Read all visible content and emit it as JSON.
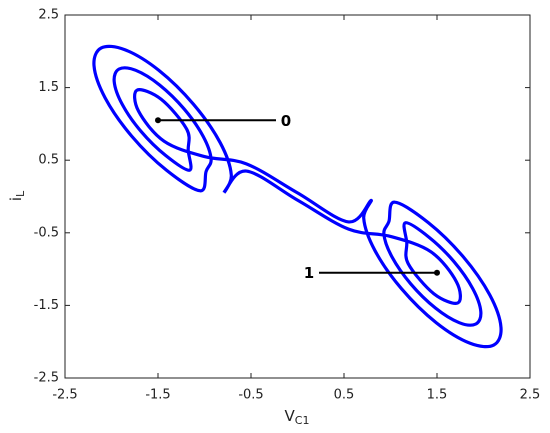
{
  "chart_data": {
    "type": "line",
    "xlabel": {
      "main": "V",
      "sub": "C1"
    },
    "ylabel": {
      "main": "i",
      "sub": "L"
    },
    "xlim": [
      -2.5,
      2.5
    ],
    "ylim": [
      -2.5,
      2.5
    ],
    "xticks": [
      -2.5,
      -1.5,
      -0.5,
      0.5,
      1.5,
      2.5
    ],
    "yticks": [
      -2.5,
      -1.5,
      -0.5,
      0.5,
      1.5,
      2.5
    ],
    "grid": false,
    "series": [
      {
        "color": "#0000ff",
        "x": [
          -0.79,
          -0.712,
          -0.832,
          -1.118,
          -1.492,
          -1.856,
          -2.11,
          -2.188,
          -2.068,
          -1.782,
          -1.408,
          -1.044,
          -0.983,
          -0.929,
          -1.015,
          -1.218,
          -1.483,
          -1.739,
          -1.918,
          -1.971,
          -1.885,
          -1.682,
          -1.417,
          -1.161,
          -1.175,
          -1.19,
          -1.466,
          -1.725,
          -1.71,
          -1.435,
          -1.0,
          -0.55,
          0.0,
          0.55,
          0.79,
          0.712,
          0.832,
          1.118,
          1.492,
          1.856,
          2.11,
          2.188,
          2.068,
          1.782,
          1.408,
          1.044,
          0.983,
          0.929,
          1.015,
          1.218,
          1.483,
          1.739,
          1.918,
          1.971,
          1.885,
          1.682,
          1.417,
          1.161,
          1.175,
          1.19,
          1.466,
          1.725,
          1.71,
          1.435,
          1.0,
          0.55,
          0.0,
          -0.55,
          -0.79
        ],
        "y": [
          0.054,
          0.298,
          0.743,
          1.27,
          1.739,
          2.022,
          2.046,
          1.802,
          1.357,
          0.83,
          0.361,
          0.078,
          0.345,
          0.516,
          0.83,
          1.204,
          1.536,
          1.738,
          1.756,
          1.584,
          1.27,
          0.896,
          0.564,
          0.362,
          0.635,
          0.924,
          1.339,
          1.465,
          1.177,
          0.762,
          0.55,
          0.45,
          0.05,
          -0.35,
          -0.054,
          -0.298,
          -0.743,
          -1.27,
          -1.739,
          -2.022,
          -2.046,
          -1.802,
          -1.357,
          -0.83,
          -0.361,
          -0.078,
          -0.345,
          -0.516,
          -0.83,
          -1.204,
          -1.536,
          -1.738,
          -1.756,
          -1.584,
          -1.27,
          -0.896,
          -0.564,
          -0.362,
          -0.635,
          -0.924,
          -1.339,
          -1.465,
          -1.177,
          -0.762,
          -0.55,
          -0.45,
          -0.05,
          0.35,
          0.054
        ]
      }
    ],
    "annotations": [
      {
        "text": "0",
        "x": -1.5,
        "y": 1.05
      },
      {
        "text": "1",
        "x": 1.5,
        "y": -1.05
      }
    ]
  }
}
